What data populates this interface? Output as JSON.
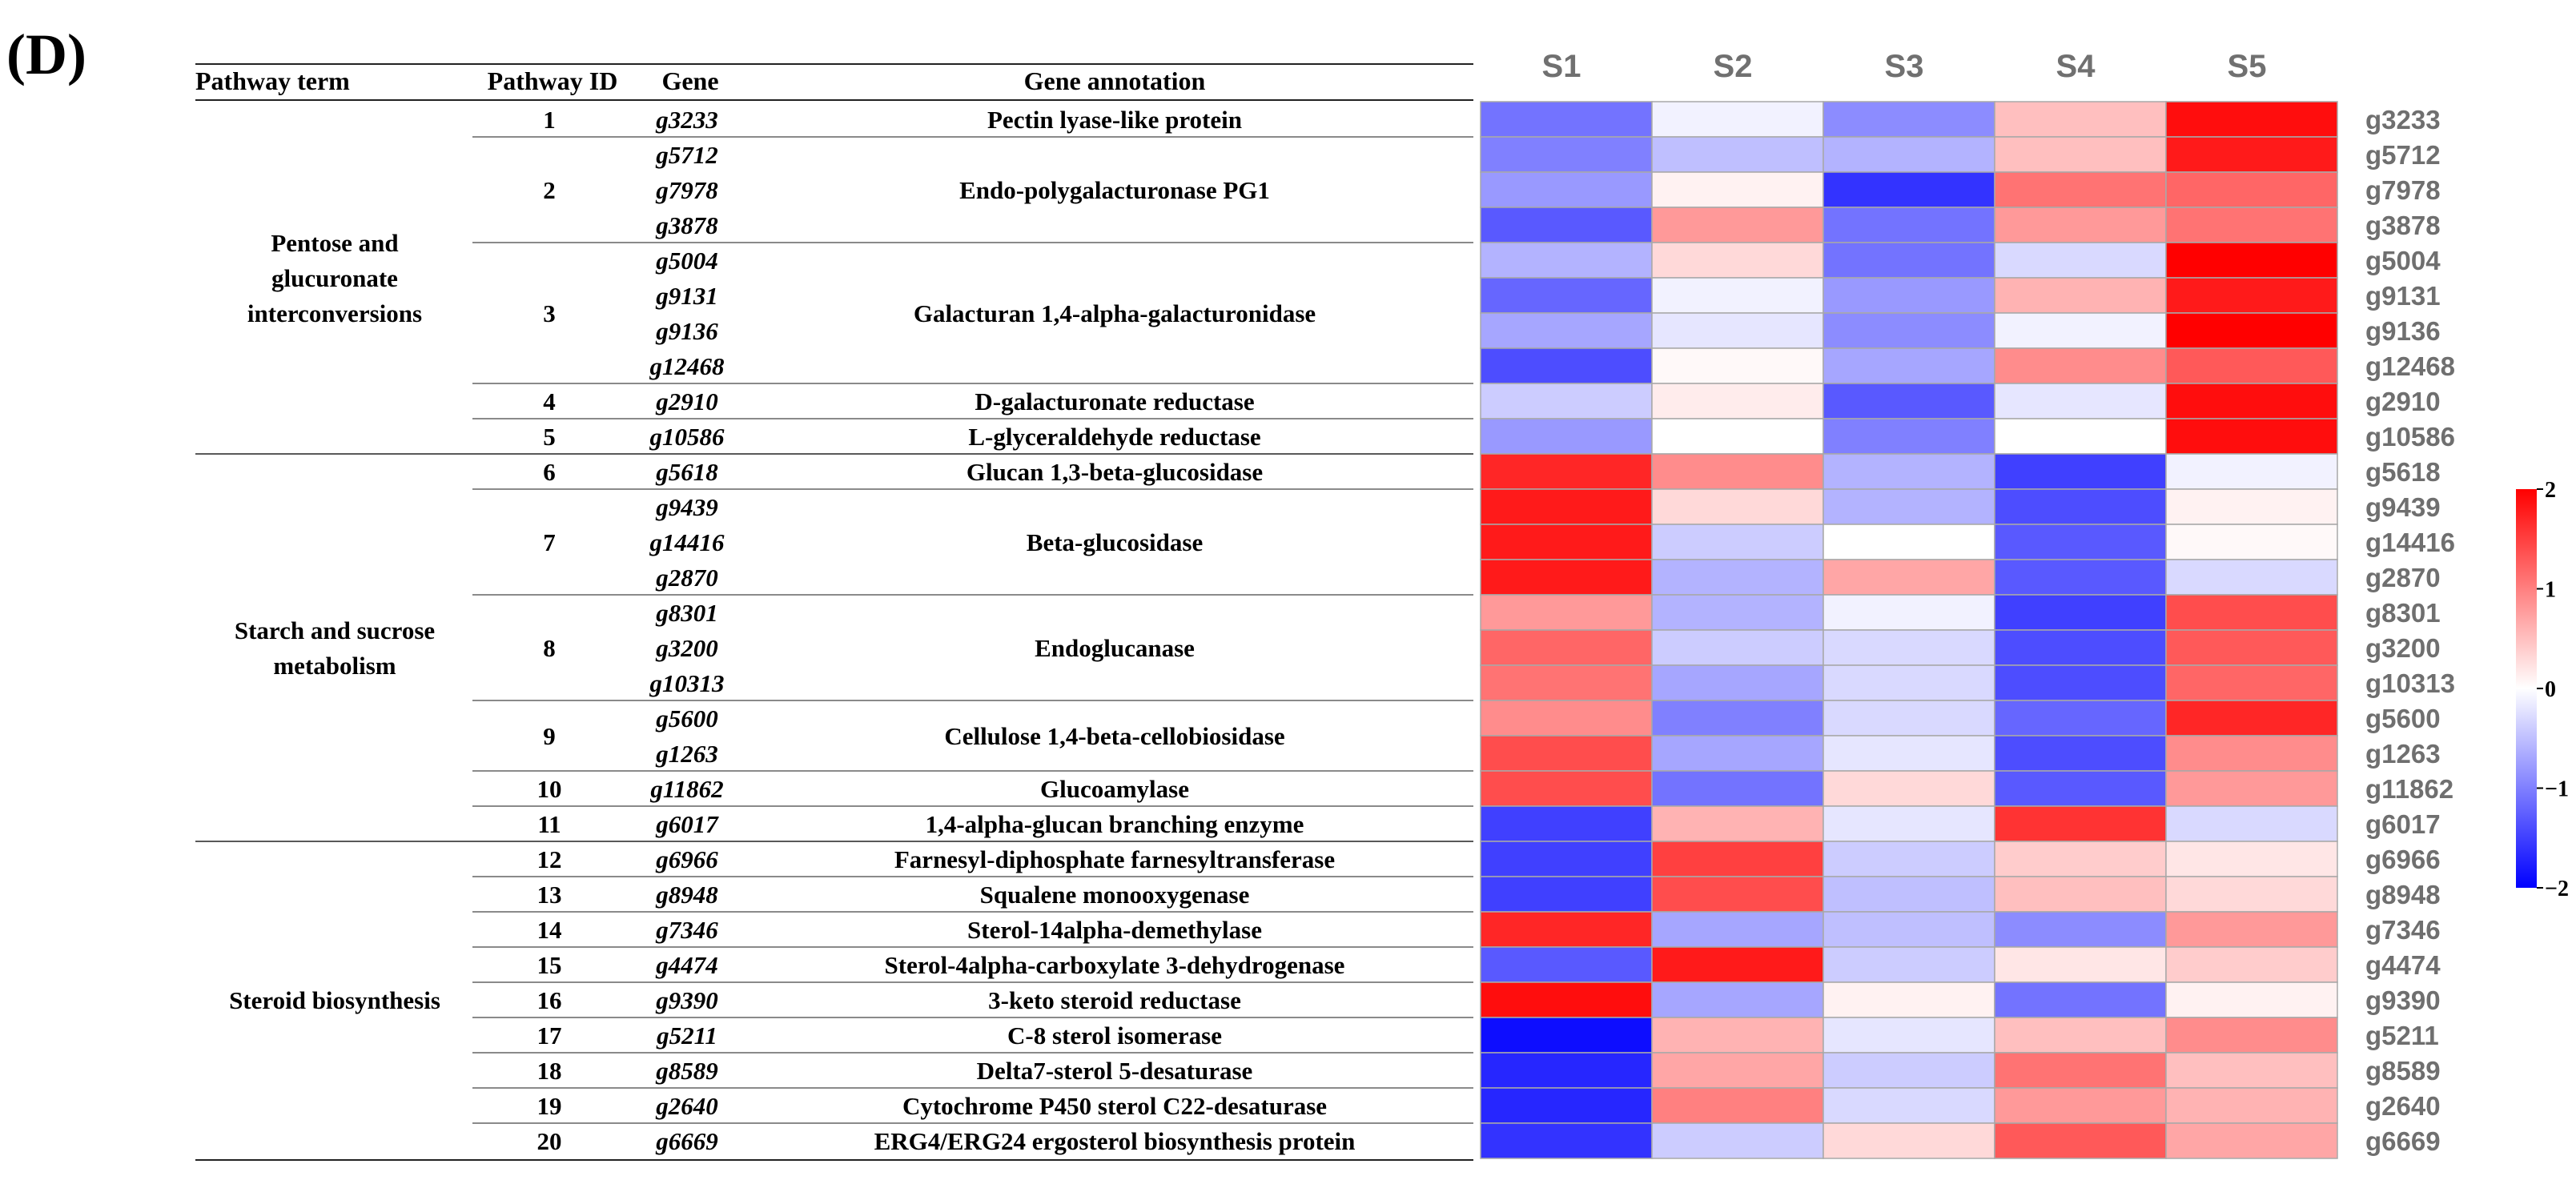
{
  "panel_label": "(D)",
  "table": {
    "headers": {
      "term": "Pathway term",
      "id": "Pathway ID",
      "gene": "Gene",
      "annotation": "Gene annotation"
    },
    "pathway_terms": [
      {
        "lines": [
          "Pentose and",
          "glucuronate",
          "interconversions"
        ]
      },
      {
        "lines": [
          "Starch and sucrose",
          "metabolism"
        ]
      },
      {
        "lines": [
          "Steroid biosynthesis"
        ]
      }
    ],
    "pathway_ids": [
      {
        "id": "1",
        "annotation": "Pectin lyase-like protein"
      },
      {
        "id": "2",
        "annotation": "Endo-polygalacturonase PG1"
      },
      {
        "id": "3",
        "annotation": "Galacturan 1,4-alpha-galacturonidase"
      },
      {
        "id": "4",
        "annotation": "D-galacturonate reductase"
      },
      {
        "id": "5",
        "annotation": "L-glyceraldehyde reductase"
      },
      {
        "id": "6",
        "annotation": "Glucan 1,3-beta-glucosidase"
      },
      {
        "id": "7",
        "annotation": "Beta-glucosidase"
      },
      {
        "id": "8",
        "annotation": "Endoglucanase"
      },
      {
        "id": "9",
        "annotation": "Cellulose 1,4-beta-cellobiosidase"
      },
      {
        "id": "10",
        "annotation": "Glucoamylase"
      },
      {
        "id": "11",
        "annotation": "1,4-alpha-glucan branching enzyme"
      },
      {
        "id": "12",
        "annotation": "Farnesyl-diphosphate farnesyltransferase"
      },
      {
        "id": "13",
        "annotation": "Squalene monooxygenase"
      },
      {
        "id": "14",
        "annotation": "Sterol-14alpha-demethylase"
      },
      {
        "id": "15",
        "annotation": "Sterol-4alpha-carboxylate 3-dehydrogenase"
      },
      {
        "id": "16",
        "annotation": "3-keto steroid reductase"
      },
      {
        "id": "17",
        "annotation": "C-8 sterol isomerase"
      },
      {
        "id": "18",
        "annotation": "Delta7-sterol 5-desaturase"
      },
      {
        "id": "19",
        "annotation": "Cytochrome P450 sterol C22-desaturase"
      },
      {
        "id": "20",
        "annotation": "ERG4/ERG24 ergosterol biosynthesis protein"
      }
    ]
  },
  "chart_data": {
    "type": "heatmap",
    "columns": [
      "S1",
      "S2",
      "S3",
      "S4",
      "S5"
    ],
    "rows": [
      "g3233",
      "g5712",
      "g7978",
      "g3878",
      "g5004",
      "g9131",
      "g9136",
      "g12468",
      "g2910",
      "g10586",
      "g5618",
      "g9439",
      "g14416",
      "g2870",
      "g8301",
      "g3200",
      "g10313",
      "g5600",
      "g1263",
      "g11862",
      "g6017",
      "g6966",
      "g8948",
      "g7346",
      "g4474",
      "g9390",
      "g5211",
      "g8589",
      "g2640",
      "g6669"
    ],
    "values": [
      [
        -1.1,
        -0.1,
        -0.9,
        0.5,
        1.9
      ],
      [
        -1.0,
        -0.5,
        -0.6,
        0.5,
        1.8
      ],
      [
        -0.8,
        0.1,
        -1.6,
        1.1,
        1.2
      ],
      [
        -1.3,
        0.8,
        -1.1,
        0.8,
        1.1
      ],
      [
        -0.6,
        0.3,
        -1.1,
        -0.3,
        2.0
      ],
      [
        -1.2,
        -0.1,
        -0.8,
        0.6,
        1.8
      ],
      [
        -0.7,
        -0.2,
        -0.9,
        -0.1,
        2.0
      ],
      [
        -1.4,
        0.05,
        -0.7,
        0.9,
        1.3
      ],
      [
        -0.4,
        0.15,
        -1.3,
        -0.2,
        1.9
      ],
      [
        -0.8,
        0.0,
        -1.0,
        0.0,
        1.9
      ],
      [
        1.7,
        0.9,
        -0.6,
        -1.5,
        -0.1
      ],
      [
        1.8,
        0.3,
        -0.6,
        -1.4,
        0.1
      ],
      [
        1.8,
        -0.4,
        0.0,
        -1.3,
        0.05
      ],
      [
        1.8,
        -0.6,
        0.7,
        -1.3,
        -0.3
      ],
      [
        0.8,
        -0.6,
        -0.1,
        -1.5,
        1.4
      ],
      [
        1.2,
        -0.4,
        -0.3,
        -1.4,
        1.3
      ],
      [
        1.1,
        -0.7,
        -0.3,
        -1.4,
        1.2
      ],
      [
        0.9,
        -1.0,
        -0.3,
        -1.2,
        1.7
      ],
      [
        1.4,
        -0.7,
        -0.2,
        -1.4,
        0.9
      ],
      [
        1.4,
        -1.1,
        0.3,
        -1.3,
        0.8
      ],
      [
        -1.5,
        0.6,
        -0.2,
        1.6,
        -0.3
      ],
      [
        -1.5,
        1.5,
        -0.4,
        0.4,
        0.2
      ],
      [
        -1.5,
        1.4,
        -0.5,
        0.5,
        0.3
      ],
      [
        1.7,
        -0.7,
        -0.5,
        -0.9,
        0.8
      ],
      [
        -1.3,
        1.8,
        -0.4,
        0.2,
        0.4
      ],
      [
        1.9,
        -0.7,
        0.1,
        -1.1,
        0.1
      ],
      [
        -1.9,
        0.6,
        -0.2,
        0.5,
        0.9
      ],
      [
        -1.7,
        0.7,
        -0.4,
        1.1,
        0.5
      ],
      [
        -1.7,
        1.0,
        -0.3,
        0.8,
        0.6
      ],
      [
        -1.6,
        -0.4,
        0.3,
        1.3,
        0.7
      ]
    ],
    "scale": {
      "min": -2,
      "max": 2,
      "ticks": [
        "2",
        "1",
        "0",
        "−1",
        "−2"
      ],
      "tick_values": [
        2,
        1,
        0,
        -1,
        -2
      ]
    },
    "colors": {
      "low": "#0000ff",
      "mid": "#ffffff",
      "high": "#ff0000"
    },
    "legend": "right"
  }
}
